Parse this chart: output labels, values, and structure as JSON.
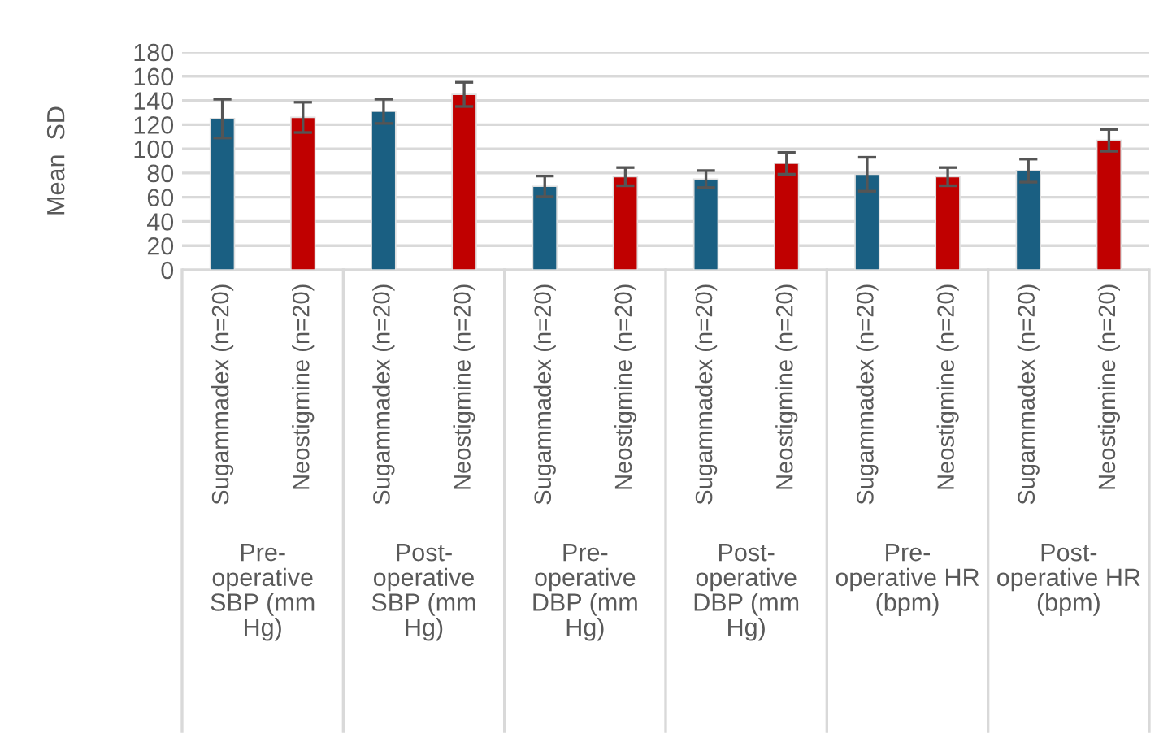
{
  "chart_data": {
    "type": "bar",
    "ylabel": "Mean  SD",
    "categories": [
      "Sugammadex (n=20)",
      "Neostigmine (n=20)",
      "Sugammadex (n=20)",
      "Neostigmine (n=20)",
      "Sugammadex (n=20)",
      "Neostigmine (n=20)",
      "Sugammadex (n=20)",
      "Neostigmine (n=20)",
      "Sugammadex (n=20)",
      "Neostigmine (n=20)",
      "Sugammadex (n=20)",
      "Neostigmine (n=20)"
    ],
    "values": [
      125,
      126,
      131,
      145,
      69,
      77,
      75,
      88,
      79,
      77,
      82,
      107
    ],
    "errors": [
      16,
      12.5,
      10,
      10,
      8.5,
      7.5,
      7,
      9,
      14,
      7.5,
      9.5,
      9
    ],
    "colors": [
      "#1a5f82",
      "#c00000",
      "#1a5f82",
      "#c00000",
      "#1a5f82",
      "#c00000",
      "#1a5f82",
      "#c00000",
      "#1a5f82",
      "#c00000",
      "#1a5f82",
      "#c00000"
    ],
    "annotations": [
      "Pre-\noperative\nSBP (mm\nHg)",
      "Post-\noperative\nSBP (mm\nHg)",
      "Pre-\noperative\nDBP (mm\nHg)",
      "Post-\noperative\nDBP (mm\nHg)",
      "Pre-\noperative HR\n(bpm)",
      "Post-\noperative HR\n(bpm)"
    ],
    "ylim": [
      0,
      180
    ],
    "yticks": [
      0,
      20,
      40,
      60,
      80,
      100,
      120,
      140,
      160,
      180
    ],
    "grid": "y"
  }
}
